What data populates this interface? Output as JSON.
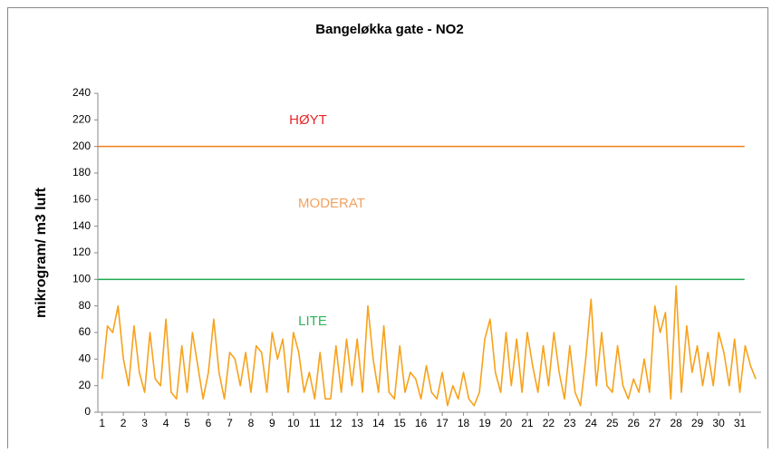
{
  "chart_data": {
    "type": "line",
    "title": "Bangeløkka gate - NO2",
    "ylabel": "mikrogram/ m3 luft",
    "color": "#f7a21b",
    "x": [
      1,
      1.25,
      1.5,
      1.75,
      2,
      2.25,
      2.5,
      2.75,
      3,
      3.25,
      3.5,
      3.75,
      4,
      4.25,
      4.5,
      4.75,
      5,
      5.25,
      5.5,
      5.75,
      6,
      6.25,
      6.5,
      6.75,
      7,
      7.25,
      7.5,
      7.75,
      8,
      8.25,
      8.5,
      8.75,
      9,
      9.25,
      9.5,
      9.75,
      10,
      10.25,
      10.5,
      10.75,
      11,
      11.25,
      11.5,
      11.75,
      12,
      12.25,
      12.5,
      12.75,
      13,
      13.25,
      13.5,
      13.75,
      14,
      14.25,
      14.5,
      14.75,
      15,
      15.25,
      15.5,
      15.75,
      16,
      16.25,
      16.5,
      16.75,
      17,
      17.25,
      17.5,
      17.75,
      18,
      18.25,
      18.5,
      18.75,
      19,
      19.25,
      19.5,
      19.75,
      20,
      20.25,
      20.5,
      20.75,
      21,
      21.25,
      21.5,
      21.75,
      22,
      22.25,
      22.5,
      22.75,
      23,
      23.25,
      23.5,
      23.75,
      24,
      24.25,
      24.5,
      24.75,
      25,
      25.25,
      25.5,
      25.75,
      26,
      26.25,
      26.5,
      26.75,
      27,
      27.25,
      27.5,
      27.75,
      28,
      28.25,
      28.5,
      28.75,
      29,
      29.25,
      29.5,
      29.75,
      30,
      30.25,
      30.5,
      30.75,
      31,
      31.25,
      31.5,
      31.75
    ],
    "values": [
      25,
      65,
      60,
      80,
      40,
      20,
      65,
      30,
      15,
      60,
      25,
      20,
      70,
      15,
      10,
      50,
      15,
      60,
      35,
      10,
      30,
      70,
      30,
      10,
      45,
      40,
      20,
      45,
      15,
      50,
      45,
      15,
      60,
      40,
      55,
      15,
      60,
      45,
      15,
      30,
      10,
      45,
      10,
      10,
      50,
      15,
      55,
      20,
      55,
      15,
      80,
      40,
      15,
      65,
      15,
      10,
      50,
      15,
      30,
      25,
      10,
      35,
      15,
      10,
      30,
      5,
      20,
      10,
      30,
      10,
      5,
      15,
      55,
      70,
      30,
      15,
      60,
      20,
      55,
      15,
      60,
      35,
      15,
      50,
      20,
      60,
      30,
      10,
      50,
      15,
      5,
      40,
      85,
      20,
      60,
      20,
      15,
      50,
      20,
      10,
      25,
      15,
      40,
      15,
      80,
      60,
      75,
      10,
      95,
      15,
      65,
      30,
      50,
      20,
      45,
      20,
      60,
      45,
      20,
      55,
      15,
      50,
      35,
      25
    ],
    "xlim": [
      0.8,
      32
    ],
    "xticks": [
      1,
      2,
      3,
      4,
      5,
      6,
      7,
      8,
      9,
      10,
      11,
      12,
      13,
      14,
      15,
      16,
      17,
      18,
      19,
      20,
      21,
      22,
      23,
      24,
      25,
      26,
      27,
      28,
      29,
      30,
      31
    ],
    "ylim": [
      0,
      240
    ],
    "yticks": [
      0,
      20,
      40,
      60,
      80,
      100,
      120,
      140,
      160,
      180,
      200,
      220,
      240
    ],
    "reference_lines": [
      {
        "value": 200,
        "color": "#f07f1e"
      },
      {
        "value": 100,
        "color": "#1fa84f"
      }
    ],
    "annotations": [
      {
        "text": "HØYT",
        "color": "#e8262b"
      },
      {
        "text": "MODERAT",
        "color": "#f2a260"
      },
      {
        "text": "LITE",
        "color": "#2fb45a"
      }
    ]
  }
}
